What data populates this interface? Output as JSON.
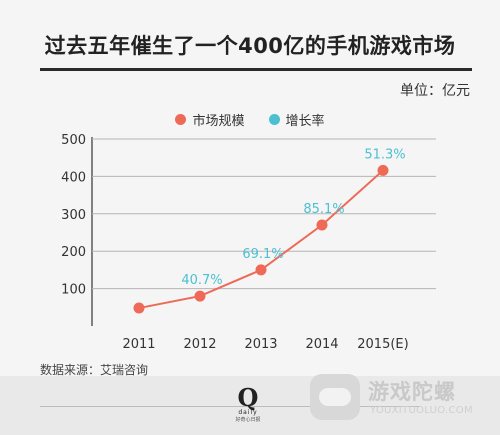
{
  "title": "过去五年催生了一个400亿的手机游戏市场",
  "unit": "单位：亿元",
  "legend": {
    "scale_label": "市场规模",
    "growth_label": "增长率"
  },
  "source": "数据来源：艾瑞咨询",
  "footer": {
    "logo_letter": "Q",
    "logo_text": "daily",
    "logo_sub": "好奇心日报"
  },
  "watermark": {
    "name": "游戏陀螺",
    "url": "YOUXITUOLUO.COM"
  },
  "colors": {
    "scale": "#ee6a57",
    "growth": "#4cc0d2",
    "axis": "#333333",
    "grid": "#b5b5b5"
  },
  "chart_data": {
    "type": "line",
    "categories": [
      "2011",
      "2012",
      "2013",
      "2014",
      "2015(E)"
    ],
    "series": [
      {
        "name": "市场规模",
        "values": [
          48,
          80,
          150,
          270,
          416
        ]
      },
      {
        "name": "增长率",
        "values": [
          null,
          40.7,
          69.1,
          85.1,
          51.3
        ]
      }
    ],
    "growth_labels": [
      "",
      "40.7%",
      "69.1%",
      "85.1%",
      "51.3%"
    ],
    "yticks": [
      100,
      200,
      300,
      400,
      500
    ],
    "ylim": [
      0,
      500
    ],
    "grid": true,
    "title": "过去五年催生了一个400亿的手机游戏市场",
    "ylabel": "单位：亿元"
  }
}
